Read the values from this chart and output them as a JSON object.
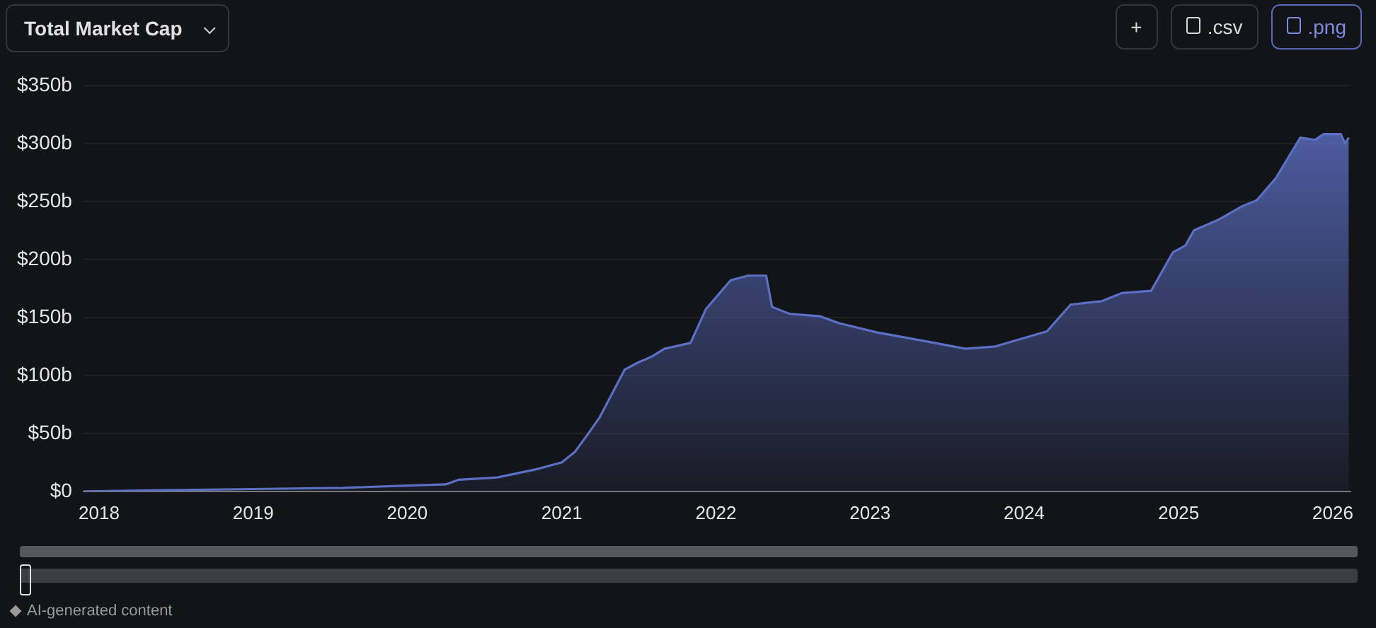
{
  "chart_data": {
    "type": "area",
    "title": "Total Market Cap",
    "annotations": [
      "+",
      ".csv",
      ".png",
      "AI-generated content"
    ],
    "x": [
      "2017-11-25",
      "2018-06-01",
      "2019-01-01",
      "2019-08-01",
      "2020-01-01",
      "2020-04-01",
      "2020-05-01",
      "2020-08-01",
      "2020-11-01",
      "2021-01-01",
      "2021-02-01",
      "2021-03-01",
      "2021-04-01",
      "2021-05-30",
      "2021-06-30",
      "2021-08-01",
      "2021-09-01",
      "2021-11-02",
      "2021-12-08",
      "2022-02-05",
      "2022-03-18",
      "2022-04-30",
      "2022-05-14",
      "2022-06-25",
      "2022-09-05",
      "2022-10-20",
      "2023-01-18",
      "2023-05-05",
      "2023-08-15",
      "2023-10-25",
      "2024-02-24",
      "2024-04-20",
      "2024-07-03",
      "2024-08-20",
      "2024-10-28",
      "2024-12-18",
      "2025-01-17",
      "2025-02-06",
      "2025-04-04",
      "2025-06-01",
      "2025-07-05",
      "2025-08-19",
      "2025-10-16",
      "2025-11-20",
      "2025-12-10",
      "2026-01-20",
      "2026-01-30",
      "2026-02-08"
    ],
    "series": [
      {
        "color": "#5b6fc4",
        "values": [
          0,
          1,
          2,
          3,
          5,
          6,
          10,
          12,
          19,
          25,
          34,
          48,
          64,
          105,
          111,
          116,
          123,
          128,
          157,
          182,
          186,
          186,
          159,
          153,
          151,
          145,
          137,
          130,
          123,
          125,
          138,
          161,
          164,
          171,
          173,
          206,
          212,
          225,
          234,
          246,
          251,
          270,
          305,
          303,
          308,
          308,
          300,
          305
        ]
      }
    ],
    "xlim": [
      "2017-11-25",
      "2026-02-12"
    ],
    "xticks": [
      "2018",
      "2019",
      "2020",
      "2021",
      "2022",
      "2023",
      "2024",
      "2025",
      "2026"
    ],
    "ylim": [
      0,
      350
    ],
    "yticks": [
      {
        "value": 0,
        "label": "$0"
      },
      {
        "value": 50,
        "label": "$50b"
      },
      {
        "value": 100,
        "label": "$100b"
      },
      {
        "value": 150,
        "label": "$150b"
      },
      {
        "value": 200,
        "label": "$200b"
      },
      {
        "value": 250,
        "label": "$250b"
      },
      {
        "value": 300,
        "label": "$300b"
      },
      {
        "value": 350,
        "label": "$350b"
      }
    ],
    "grid": "y",
    "legend": false,
    "marker": "none",
    "line_style": "solid"
  }
}
